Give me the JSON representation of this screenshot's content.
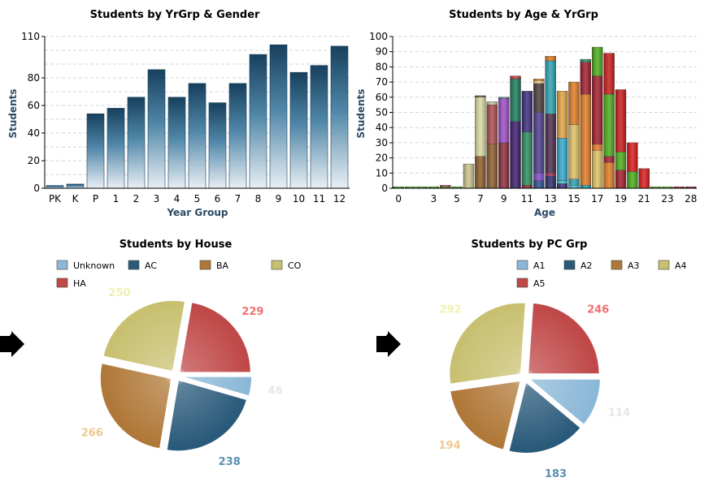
{
  "chart_data": [
    {
      "type": "bar",
      "title": "Students by YrGrp & Gender",
      "xlabel": "Year Group",
      "ylabel": "Students",
      "ylim": [
        0,
        110
      ],
      "yticks": [
        0,
        20,
        40,
        60,
        80,
        110
      ],
      "grid": true,
      "color": "#1d4f6e",
      "categories": [
        "PK",
        "K",
        "P",
        "1",
        "2",
        "3",
        "4",
        "5",
        "6",
        "7",
        "8",
        "9",
        "10",
        "11",
        "12"
      ],
      "values": [
        2,
        3,
        54,
        58,
        66,
        86,
        66,
        76,
        62,
        76,
        97,
        104,
        84,
        89,
        103
      ]
    },
    {
      "type": "bar",
      "stacked": true,
      "title": "Students by Age & YrGrp",
      "xlabel": "Age",
      "ylabel": "Students",
      "ylim": [
        0,
        100
      ],
      "yticks": [
        0,
        10,
        20,
        30,
        40,
        50,
        60,
        70,
        80,
        90,
        100
      ],
      "xticks": [
        0,
        3,
        5,
        7,
        9,
        11,
        13,
        15,
        17,
        19,
        21,
        23,
        28
      ],
      "grid": true,
      "categories": [
        "0",
        "1",
        "2",
        "3",
        "4",
        "5",
        "6",
        "7",
        "8",
        "9",
        "10",
        "11",
        "12",
        "13",
        "14",
        "15",
        "16",
        "17",
        "18",
        "19",
        "20",
        "21",
        "22",
        "23",
        "24",
        "28"
      ],
      "stacks": [
        [
          {
            "v": 1,
            "c": "#3aa617"
          }
        ],
        [
          {
            "v": 1,
            "c": "#3aa617"
          }
        ],
        [
          {
            "v": 1,
            "c": "#3aa617"
          }
        ],
        [
          {
            "v": 1,
            "c": "#3aa617"
          }
        ],
        [
          {
            "v": 1,
            "c": "#3aa617"
          },
          {
            "v": 1,
            "c": "#c04060"
          }
        ],
        [
          {
            "v": 1,
            "c": "#3aa617"
          }
        ],
        [
          {
            "v": 16,
            "c": "#c9c38a"
          }
        ],
        [
          {
            "v": 21,
            "c": "#8a5a28"
          },
          {
            "v": 39,
            "c": "#d8d8a0"
          },
          {
            "v": 1,
            "c": "#5f5f3a"
          }
        ],
        [
          {
            "v": 29,
            "c": "#8a5a28"
          },
          {
            "v": 26,
            "c": "#a84a4a"
          },
          {
            "v": 2,
            "c": "#c4c4a0"
          }
        ],
        [
          {
            "v": 30,
            "c": "#8a2a3a"
          },
          {
            "v": 29,
            "c": "#9a4ac4"
          },
          {
            "v": 1,
            "c": "#5a80a0"
          }
        ],
        [
          {
            "v": 44,
            "c": "#3a1a6a"
          },
          {
            "v": 28,
            "c": "#1a7a5a"
          },
          {
            "v": 2,
            "c": "#c03030"
          }
        ],
        [
          {
            "v": 2,
            "c": "#8a2a3a"
          },
          {
            "v": 35,
            "c": "#2a8a5a"
          },
          {
            "v": 27,
            "c": "#3a2a7a"
          }
        ],
        [
          {
            "v": 5,
            "c": "#2a4a8a"
          },
          {
            "v": 5,
            "c": "#7a4ac4"
          },
          {
            "v": 40,
            "c": "#4a3a8a"
          },
          {
            "v": 19,
            "c": "#4a3a3a"
          },
          {
            "v": 2,
            "c": "#f0d080"
          },
          {
            "v": 1,
            "c": "#e07a20"
          }
        ],
        [
          {
            "v": 8,
            "c": "#2a2a6a"
          },
          {
            "v": 2,
            "c": "#a03050"
          },
          {
            "v": 39,
            "c": "#4a2a4a"
          },
          {
            "v": 35,
            "c": "#2aa0b0"
          },
          {
            "v": 3,
            "c": "#e07a20"
          }
        ],
        [
          {
            "v": 3,
            "c": "#3a2a7a"
          },
          {
            "v": 2,
            "c": "#40c0d0"
          },
          {
            "v": 28,
            "c": "#30a8c8"
          },
          {
            "v": 31,
            "c": "#e0a040"
          }
        ],
        [
          {
            "v": 2,
            "c": "#40c0d0"
          },
          {
            "v": 4,
            "c": "#2aa0b0"
          },
          {
            "v": 36,
            "c": "#e0c060"
          },
          {
            "v": 28,
            "c": "#e07a20"
          }
        ],
        [
          {
            "v": 2,
            "c": "#2aa0b0"
          },
          {
            "v": 60,
            "c": "#e07a20"
          },
          {
            "v": 21,
            "c": "#a01a2a"
          },
          {
            "v": 2,
            "c": "#2a8a5a"
          }
        ],
        [
          {
            "v": 25,
            "c": "#e0c060"
          },
          {
            "v": 4,
            "c": "#e07a20"
          },
          {
            "v": 45,
            "c": "#a01a2a"
          },
          {
            "v": 19,
            "c": "#4aaa17"
          }
        ],
        [
          {
            "v": 17,
            "c": "#e07a20"
          },
          {
            "v": 4,
            "c": "#a01a2a"
          },
          {
            "v": 41,
            "c": "#4aaa17"
          },
          {
            "v": 27,
            "c": "#c81818"
          }
        ],
        [
          {
            "v": 12,
            "c": "#a01a2a"
          },
          {
            "v": 12,
            "c": "#4aaa17"
          },
          {
            "v": 41,
            "c": "#c81818"
          }
        ],
        [
          {
            "v": 11,
            "c": "#4aaa17"
          },
          {
            "v": 19,
            "c": "#d81818"
          }
        ],
        [
          {
            "v": 13,
            "c": "#d81818"
          }
        ],
        [
          {
            "v": 1,
            "c": "#4aaa17"
          }
        ],
        [
          {
            "v": 1,
            "c": "#4aaa17"
          }
        ],
        [
          {
            "v": 1,
            "c": "#a01a2a"
          }
        ],
        [
          {
            "v": 1,
            "c": "#a01a2a"
          }
        ]
      ]
    },
    {
      "type": "pie",
      "title": "Students by House",
      "legend": [
        "Unknown",
        "AC",
        "BA",
        "CO",
        "HA"
      ],
      "colors": [
        "#8cb8d8",
        "#2a5a7a",
        "#b07838",
        "#c8c070",
        "#c04848"
      ],
      "label_colors": [
        "#e6e6e6",
        "#5a90b0",
        "#f0c890",
        "#f0f0b0",
        "#f07070"
      ],
      "values": [
        46,
        238,
        266,
        250,
        229
      ]
    },
    {
      "type": "pie",
      "title": "Students by PC Grp",
      "legend": [
        "A1",
        "A2",
        "A3",
        "A4",
        "A5"
      ],
      "colors": [
        "#8cb8d8",
        "#2a5a7a",
        "#b07838",
        "#c8c070",
        "#c04848"
      ],
      "label_colors": [
        "#e6e6e6",
        "#5a90b0",
        "#f0c890",
        "#f0f0b0",
        "#f07070"
      ],
      "values": [
        114,
        183,
        194,
        292,
        246
      ]
    }
  ]
}
